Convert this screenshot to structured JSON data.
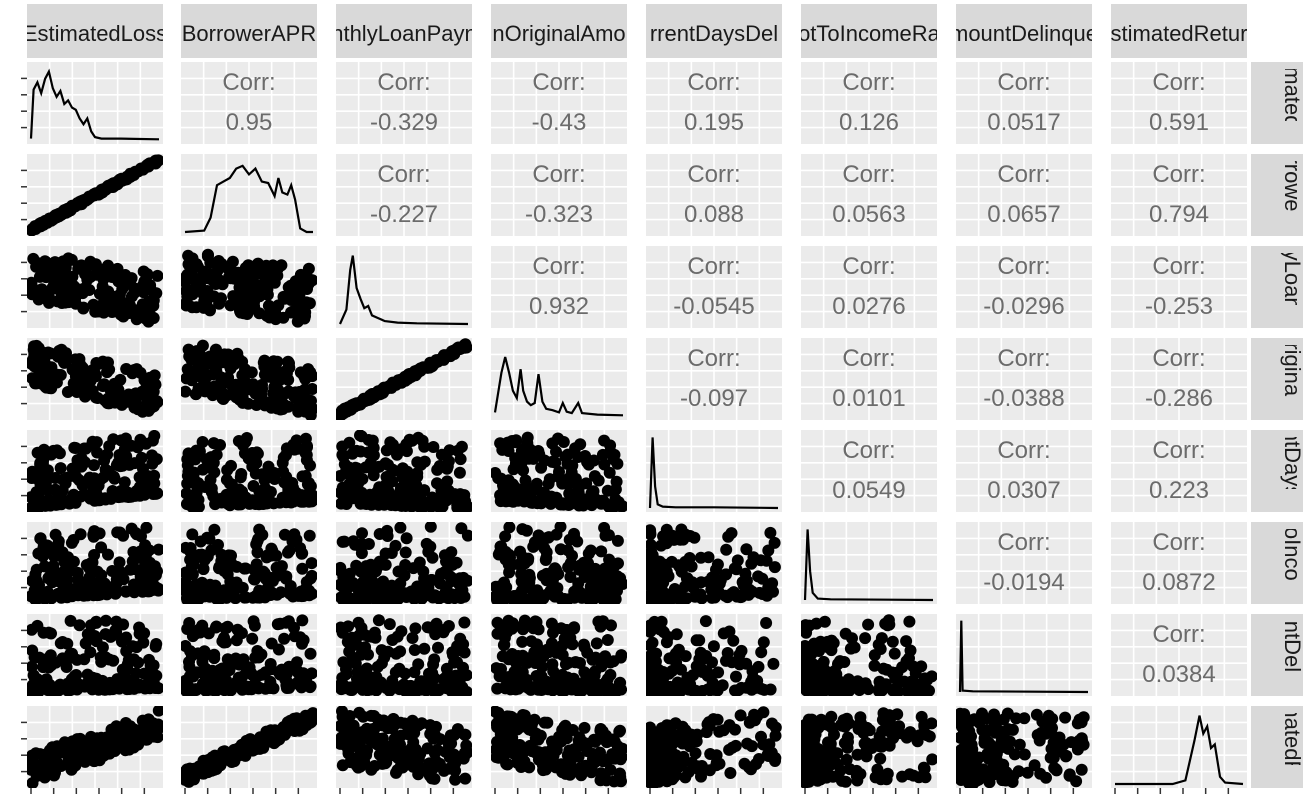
{
  "chart_data": {
    "type": "scatter",
    "subtype": "pairs-plot-matrix",
    "variables": [
      "EstimatedLoss",
      "BorrowerAPR",
      "MonthlyLoanPayment",
      "LoanOriginalAmount",
      "LoanCurrentDaysDelinquent",
      "DebtToIncomeRatio",
      "AmountDelinquent",
      "EstimatedReturn"
    ],
    "column_strip_labels": [
      "EstimatedLoss",
      "BorrowerAPR",
      "nthlyLoanPayn",
      "nOriginalAmo",
      "rrentDaysDel",
      "otToIncomeRa",
      "mountDelinque",
      "stimatedRetur"
    ],
    "row_strip_labels": [
      "matedL",
      "rrowerA",
      "yLoanP",
      "riginalA",
      "ntDaysD",
      "oIncom",
      "ntDelin",
      "natedRe"
    ],
    "corr_label": "Corr:",
    "correlations": [
      {
        "row": 0,
        "col": 1,
        "text": "0.95"
      },
      {
        "row": 0,
        "col": 2,
        "text": "-0.329"
      },
      {
        "row": 0,
        "col": 3,
        "text": "-0.43"
      },
      {
        "row": 0,
        "col": 4,
        "text": "0.195"
      },
      {
        "row": 0,
        "col": 5,
        "text": "0.126"
      },
      {
        "row": 0,
        "col": 6,
        "text": "0.0517"
      },
      {
        "row": 0,
        "col": 7,
        "text": "0.591"
      },
      {
        "row": 1,
        "col": 2,
        "text": "-0.227"
      },
      {
        "row": 1,
        "col": 3,
        "text": "-0.323"
      },
      {
        "row": 1,
        "col": 4,
        "text": "0.088"
      },
      {
        "row": 1,
        "col": 5,
        "text": "0.0563"
      },
      {
        "row": 1,
        "col": 6,
        "text": "0.0657"
      },
      {
        "row": 1,
        "col": 7,
        "text": "0.794"
      },
      {
        "row": 2,
        "col": 3,
        "text": "0.932"
      },
      {
        "row": 2,
        "col": 4,
        "text": "-0.0545"
      },
      {
        "row": 2,
        "col": 5,
        "text": "0.0276"
      },
      {
        "row": 2,
        "col": 6,
        "text": "-0.0296"
      },
      {
        "row": 2,
        "col": 7,
        "text": "-0.253"
      },
      {
        "row": 3,
        "col": 4,
        "text": "-0.097"
      },
      {
        "row": 3,
        "col": 5,
        "text": "0.0101"
      },
      {
        "row": 3,
        "col": 6,
        "text": "-0.0388"
      },
      {
        "row": 3,
        "col": 7,
        "text": "-0.286"
      },
      {
        "row": 4,
        "col": 5,
        "text": "0.0549"
      },
      {
        "row": 4,
        "col": 6,
        "text": "0.0307"
      },
      {
        "row": 4,
        "col": 7,
        "text": "0.223"
      },
      {
        "row": 5,
        "col": 6,
        "text": "-0.0194"
      },
      {
        "row": 5,
        "col": 7,
        "text": "0.0872"
      },
      {
        "row": 6,
        "col": 7,
        "text": "0.0384"
      }
    ],
    "density_shapes": [
      [
        [
          0.0,
          0.02
        ],
        [
          0.02,
          0.7
        ],
        [
          0.05,
          0.8
        ],
        [
          0.08,
          0.65
        ],
        [
          0.11,
          0.85
        ],
        [
          0.14,
          0.95
        ],
        [
          0.17,
          0.72
        ],
        [
          0.2,
          0.6
        ],
        [
          0.23,
          0.68
        ],
        [
          0.26,
          0.5
        ],
        [
          0.29,
          0.55
        ],
        [
          0.32,
          0.45
        ],
        [
          0.35,
          0.42
        ],
        [
          0.38,
          0.3
        ],
        [
          0.41,
          0.22
        ],
        [
          0.44,
          0.3
        ],
        [
          0.47,
          0.12
        ],
        [
          0.5,
          0.04
        ],
        [
          0.55,
          0.02
        ],
        [
          0.7,
          0.02
        ],
        [
          1.0,
          0.01
        ]
      ],
      [
        [
          0.0,
          0.0
        ],
        [
          0.15,
          0.02
        ],
        [
          0.2,
          0.2
        ],
        [
          0.25,
          0.65
        ],
        [
          0.3,
          0.7
        ],
        [
          0.35,
          0.75
        ],
        [
          0.4,
          0.88
        ],
        [
          0.45,
          0.92
        ],
        [
          0.5,
          0.8
        ],
        [
          0.55,
          0.88
        ],
        [
          0.6,
          0.7
        ],
        [
          0.65,
          0.68
        ],
        [
          0.7,
          0.5
        ],
        [
          0.73,
          0.75
        ],
        [
          0.76,
          0.55
        ],
        [
          0.8,
          0.52
        ],
        [
          0.83,
          0.65
        ],
        [
          0.86,
          0.45
        ],
        [
          0.9,
          0.05
        ],
        [
          0.95,
          0.0
        ],
        [
          1.0,
          0.0
        ]
      ],
      [
        [
          0.0,
          0.0
        ],
        [
          0.05,
          0.2
        ],
        [
          0.08,
          0.75
        ],
        [
          0.1,
          0.95
        ],
        [
          0.13,
          0.5
        ],
        [
          0.16,
          0.35
        ],
        [
          0.19,
          0.22
        ],
        [
          0.22,
          0.25
        ],
        [
          0.25,
          0.12
        ],
        [
          0.3,
          0.08
        ],
        [
          0.35,
          0.04
        ],
        [
          0.45,
          0.02
        ],
        [
          0.6,
          0.01
        ],
        [
          1.0,
          0.0
        ]
      ],
      [
        [
          0.0,
          0.05
        ],
        [
          0.05,
          0.6
        ],
        [
          0.08,
          0.82
        ],
        [
          0.11,
          0.6
        ],
        [
          0.14,
          0.35
        ],
        [
          0.17,
          0.25
        ],
        [
          0.2,
          0.65
        ],
        [
          0.22,
          0.35
        ],
        [
          0.25,
          0.2
        ],
        [
          0.28,
          0.15
        ],
        [
          0.31,
          0.18
        ],
        [
          0.34,
          0.58
        ],
        [
          0.37,
          0.2
        ],
        [
          0.4,
          0.1
        ],
        [
          0.45,
          0.08
        ],
        [
          0.5,
          0.05
        ],
        [
          0.53,
          0.18
        ],
        [
          0.56,
          0.06
        ],
        [
          0.6,
          0.04
        ],
        [
          0.65,
          0.18
        ],
        [
          0.68,
          0.04
        ],
        [
          0.8,
          0.02
        ],
        [
          1.0,
          0.01
        ]
      ],
      [
        [
          0.0,
          0.0
        ],
        [
          0.02,
          0.98
        ],
        [
          0.04,
          0.3
        ],
        [
          0.06,
          0.05
        ],
        [
          0.1,
          0.02
        ],
        [
          0.2,
          0.01
        ],
        [
          0.5,
          0.01
        ],
        [
          1.0,
          0.0
        ]
      ],
      [
        [
          0.0,
          0.0
        ],
        [
          0.02,
          0.98
        ],
        [
          0.04,
          0.4
        ],
        [
          0.06,
          0.1
        ],
        [
          0.1,
          0.02
        ],
        [
          0.2,
          0.01
        ],
        [
          1.0,
          0.0
        ]
      ],
      [
        [
          0.0,
          0.0
        ],
        [
          0.01,
          0.99
        ],
        [
          0.02,
          0.02
        ],
        [
          0.1,
          0.01
        ],
        [
          1.0,
          0.0
        ]
      ],
      [
        [
          0.0,
          0.0
        ],
        [
          0.45,
          0.0
        ],
        [
          0.55,
          0.05
        ],
        [
          0.62,
          0.6
        ],
        [
          0.66,
          0.95
        ],
        [
          0.69,
          0.7
        ],
        [
          0.72,
          0.8
        ],
        [
          0.75,
          0.5
        ],
        [
          0.78,
          0.55
        ],
        [
          0.82,
          0.1
        ],
        [
          0.86,
          0.02
        ],
        [
          1.0,
          0.0
        ]
      ]
    ],
    "grid": true,
    "point_color": "#000000",
    "panel_background": "#ebebeb",
    "strip_background": "#d9d9d9",
    "corr_text_color": "#6b6b6b"
  }
}
